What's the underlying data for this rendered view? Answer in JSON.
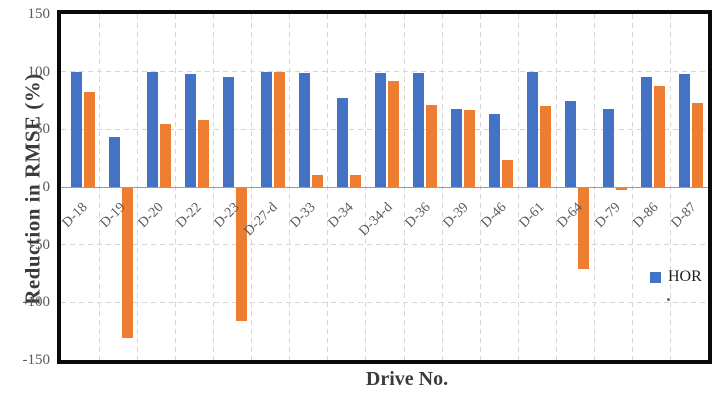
{
  "chart_data": {
    "type": "bar",
    "title": "",
    "xlabel": "Drive No.",
    "ylabel": "Reduction in RMSE (%)",
    "ylim": [
      -150,
      150
    ],
    "yticks": [
      150,
      100,
      50,
      0,
      -50,
      -100,
      -150
    ],
    "grid": "dashed",
    "legend_position": "inside-right",
    "categories": [
      "D-18",
      "D-19",
      "D-20",
      "D-22",
      "D-23",
      "D-27-d",
      "D-33",
      "D-34",
      "D-34-d",
      "D-36",
      "D-39",
      "D-46",
      "D-61",
      "D-64",
      "D-79",
      "D-86",
      "D-87"
    ],
    "series": [
      {
        "name": "HOR",
        "color": "#4472C4",
        "values": [
          100,
          43,
          100,
          98,
          95,
          100,
          99,
          77,
          99,
          99,
          68,
          63,
          100,
          75,
          68,
          95,
          98
        ]
      },
      {
        "name": "",
        "color": "#ED7D31",
        "values": [
          82,
          -130,
          55,
          58,
          -115,
          100,
          10,
          10,
          92,
          71,
          67,
          23,
          70,
          -70,
          -2,
          88,
          73
        ]
      }
    ],
    "colors": {
      "hor_series": "#4472C4",
      "second_series": "#ED7D31",
      "gridline": "#D6D6D6",
      "zero_axis": "#9B9B9B",
      "plot_border": "#0A0A0A",
      "tick_text": "#595959",
      "axis_title_text": "#3B3B3B"
    }
  }
}
